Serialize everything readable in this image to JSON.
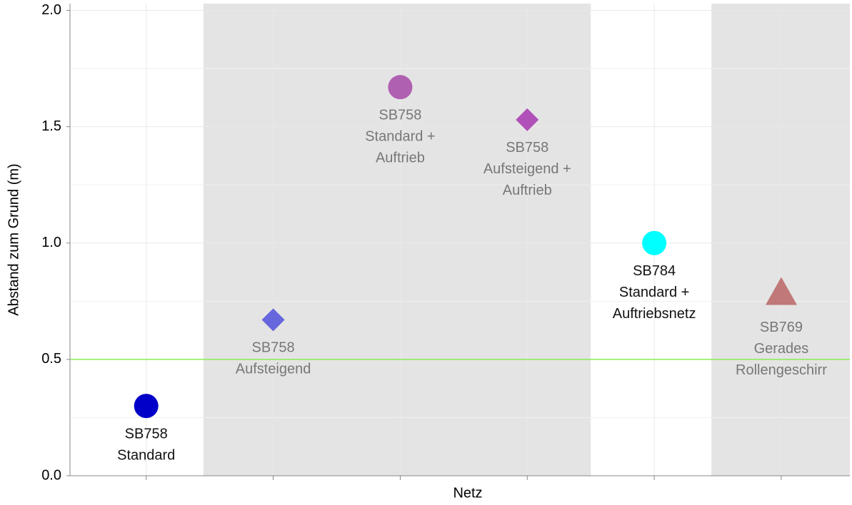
{
  "chart_data": {
    "type": "scatter",
    "x_label": "Netz",
    "y_label": "Abstand zum Grund (m)",
    "x": [
      1,
      2,
      3,
      4,
      5,
      6
    ],
    "values": [
      0.3,
      0.67,
      1.67,
      1.53,
      1.0,
      0.78
    ],
    "labels": [
      [
        "SB758",
        "Standard"
      ],
      [
        "SB758",
        "Aufsteigend"
      ],
      [
        "SB758",
        "Standard +",
        "Auftrieb"
      ],
      [
        "SB758",
        "Aufsteigend +",
        "Auftrieb"
      ],
      [
        "SB784",
        "Standard +",
        "Auftriebsnetz"
      ],
      [
        "SB769",
        "Gerades",
        "Rollengeschirr"
      ]
    ],
    "colors": [
      "#0000c8",
      "#6666dd",
      "#b060b0",
      "#b050b8",
      "#00ffff",
      "#c07878"
    ],
    "markers": [
      "circle",
      "diamond",
      "circle",
      "diamond",
      "circle",
      "triangle"
    ],
    "label_colors": [
      "#111111",
      "#777777",
      "#777777",
      "#777777",
      "#111111",
      "#777777"
    ],
    "xlim": [
      0.4,
      6.54
    ],
    "xticks": [
      1,
      2,
      3,
      4,
      5,
      6
    ],
    "ylim": [
      0,
      2.02
    ],
    "yticks": [
      {
        "value": 0,
        "label": "0.0"
      },
      {
        "value": 0.5,
        "label": "0.5"
      },
      {
        "value": 1,
        "label": "1.0"
      },
      {
        "value": 1.5,
        "label": "1.5"
      },
      {
        "value": 2,
        "label": "2.0"
      }
    ],
    "minor_yticks": [
      0.25,
      0.75,
      1.25,
      1.75
    ],
    "shaded_ranges": [
      [
        1.45,
        4.5
      ],
      [
        5.45,
        6.54
      ]
    ],
    "shade_color": "#e4e4e4",
    "reference_line": 0.5,
    "reference_color": "#88ee55",
    "grid": true
  }
}
